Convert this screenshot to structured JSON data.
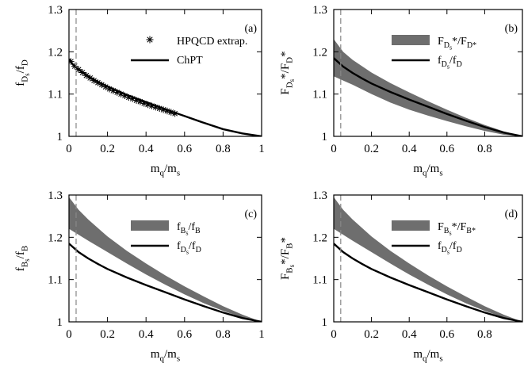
{
  "chart_data": [
    {
      "panel": "(a)",
      "type": "line",
      "xlabel": "m_q/m_s",
      "ylabel": "f_{D_s}/f_D",
      "xlim": [
        0,
        1
      ],
      "ylim": [
        1,
        1.3
      ],
      "xticks": [
        "0",
        "0.2",
        "0.4",
        "0.6",
        "0.8",
        "1"
      ],
      "yticks": [
        "1",
        "1.1",
        "1.2",
        "1.3"
      ],
      "vline_x": 0.037,
      "legend_position": "top-right",
      "series": [
        {
          "name": "HPQCD extrap.",
          "kind": "markers",
          "x": [
            0.01,
            0.03,
            0.05,
            0.07,
            0.09,
            0.11,
            0.13,
            0.15,
            0.17,
            0.19,
            0.21,
            0.23,
            0.25,
            0.27,
            0.29,
            0.31,
            0.33,
            0.35,
            0.37,
            0.39,
            0.41,
            0.43,
            0.45,
            0.47,
            0.49,
            0.51,
            0.53,
            0.55
          ],
          "y": [
            1.177,
            1.166,
            1.158,
            1.151,
            1.144,
            1.138,
            1.132,
            1.127,
            1.122,
            1.117,
            1.112,
            1.108,
            1.104,
            1.1,
            1.096,
            1.092,
            1.089,
            1.085,
            1.082,
            1.078,
            1.075,
            1.072,
            1.069,
            1.066,
            1.063,
            1.06,
            1.057,
            1.054
          ]
        },
        {
          "name": "ChPT",
          "kind": "line",
          "x": [
            0.0,
            0.02,
            0.05,
            0.1,
            0.15,
            0.2,
            0.3,
            0.4,
            0.5,
            0.6,
            0.7,
            0.8,
            0.9,
            1.0
          ],
          "y": [
            1.183,
            1.17,
            1.158,
            1.142,
            1.129,
            1.118,
            1.098,
            1.081,
            1.064,
            1.048,
            1.032,
            1.017,
            1.007,
            1.0
          ]
        }
      ]
    },
    {
      "panel": "(b)",
      "type": "area",
      "xlabel": "m_q/m_s",
      "ylabel": "F_{D_s}*/F_D*",
      "xlim": [
        0,
        1
      ],
      "ylim": [
        1,
        1.3
      ],
      "xticks": [
        "0",
        "0.2",
        "0.4",
        "0.6",
        "0.8"
      ],
      "yticks": [
        "1",
        "1.1",
        "1.2",
        "1.3"
      ],
      "vline_x": 0.037,
      "legend_position": "top-right",
      "series": [
        {
          "name": "F_{D_s}*/F_{D*}",
          "kind": "band",
          "x": [
            0.0,
            0.05,
            0.1,
            0.2,
            0.3,
            0.4,
            0.5,
            0.6,
            0.7,
            0.8,
            0.9,
            1.0
          ],
          "upper": [
            1.23,
            1.2,
            1.181,
            1.151,
            1.126,
            1.104,
            1.083,
            1.063,
            1.044,
            1.027,
            1.012,
            1.0
          ],
          "lower": [
            1.142,
            1.132,
            1.122,
            1.1,
            1.08,
            1.063,
            1.049,
            1.036,
            1.024,
            1.013,
            1.004,
            1.0
          ]
        },
        {
          "name": "f_{D_s}/f_D",
          "kind": "line",
          "x": [
            0.0,
            0.05,
            0.1,
            0.15,
            0.2,
            0.3,
            0.4,
            0.5,
            0.6,
            0.7,
            0.8,
            0.9,
            1.0
          ],
          "y": [
            1.185,
            1.165,
            1.15,
            1.137,
            1.125,
            1.105,
            1.087,
            1.07,
            1.053,
            1.037,
            1.022,
            1.009,
            1.0
          ]
        }
      ]
    },
    {
      "panel": "(c)",
      "type": "area",
      "xlabel": "m_q/m_s",
      "ylabel": "f_{B_s}/f_B",
      "xlim": [
        0,
        1
      ],
      "ylim": [
        1,
        1.3
      ],
      "xticks": [
        "0",
        "0.2",
        "0.4",
        "0.6",
        "0.8",
        "1"
      ],
      "yticks": [
        "1",
        "1.1",
        "1.2",
        "1.3"
      ],
      "vline_x": 0.037,
      "legend_position": "top-right",
      "series": [
        {
          "name": "f_{B_s}/f_B",
          "kind": "band",
          "x": [
            0.0,
            0.05,
            0.1,
            0.2,
            0.3,
            0.4,
            0.5,
            0.6,
            0.7,
            0.8,
            0.9,
            1.0
          ],
          "upper": [
            1.295,
            1.265,
            1.242,
            1.202,
            1.168,
            1.138,
            1.11,
            1.084,
            1.06,
            1.037,
            1.017,
            1.0
          ],
          "lower": [
            1.22,
            1.206,
            1.192,
            1.165,
            1.138,
            1.112,
            1.088,
            1.065,
            1.044,
            1.026,
            1.01,
            1.0
          ]
        },
        {
          "name": "f_{D_s}/f_D",
          "kind": "line",
          "x": [
            0.0,
            0.05,
            0.1,
            0.15,
            0.2,
            0.3,
            0.4,
            0.5,
            0.6,
            0.7,
            0.8,
            0.9,
            1.0
          ],
          "y": [
            1.185,
            1.165,
            1.15,
            1.137,
            1.125,
            1.105,
            1.087,
            1.07,
            1.053,
            1.037,
            1.022,
            1.009,
            1.0
          ]
        }
      ]
    },
    {
      "panel": "(d)",
      "type": "area",
      "xlabel": "m_q/m_s",
      "ylabel": "F_{B_s}*/F_B*",
      "xlim": [
        0,
        1
      ],
      "ylim": [
        1,
        1.3
      ],
      "xticks": [
        "0",
        "0.2",
        "0.4",
        "0.6",
        "0.8"
      ],
      "yticks": [
        "1",
        "1.1",
        "1.2",
        "1.3"
      ],
      "vline_x": 0.037,
      "legend_position": "top-right",
      "series": [
        {
          "name": "F_{B_s}*/F_{B*}",
          "kind": "band",
          "x": [
            0.0,
            0.05,
            0.1,
            0.2,
            0.3,
            0.4,
            0.5,
            0.6,
            0.7,
            0.8,
            0.9,
            1.0
          ],
          "upper": [
            1.295,
            1.265,
            1.242,
            1.202,
            1.168,
            1.138,
            1.11,
            1.084,
            1.06,
            1.037,
            1.017,
            1.0
          ],
          "lower": [
            1.22,
            1.206,
            1.192,
            1.165,
            1.138,
            1.112,
            1.088,
            1.065,
            1.044,
            1.026,
            1.01,
            1.0
          ]
        },
        {
          "name": "f_{D_s}/f_D",
          "kind": "line",
          "x": [
            0.0,
            0.05,
            0.1,
            0.15,
            0.2,
            0.3,
            0.4,
            0.5,
            0.6,
            0.7,
            0.8,
            0.9,
            1.0
          ],
          "y": [
            1.185,
            1.165,
            1.15,
            1.137,
            1.125,
            1.105,
            1.087,
            1.07,
            1.053,
            1.037,
            1.022,
            1.009,
            1.0
          ]
        }
      ]
    }
  ],
  "colors": {
    "band": "#6e6e6e",
    "line": "#000000",
    "dashed": "#888888"
  }
}
